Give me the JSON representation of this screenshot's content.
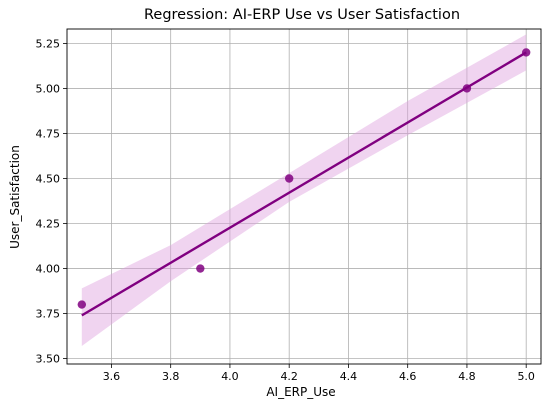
{
  "chart_data": {
    "type": "scatter",
    "title": "Regression: AI-ERP Use vs User Satisfaction",
    "xlabel": "AI_ERP_Use",
    "ylabel": "User_Satisfaction",
    "xlim": [
      3.45,
      5.05
    ],
    "ylim": [
      3.47,
      5.33
    ],
    "x_ticks": [
      3.6,
      3.8,
      4.0,
      4.2,
      4.4,
      4.6,
      4.8,
      5.0
    ],
    "x_tick_labels": [
      "3.6",
      "3.8",
      "4.0",
      "4.2",
      "4.4",
      "4.6",
      "4.8",
      "5.0"
    ],
    "y_ticks": [
      3.5,
      3.75,
      4.0,
      4.25,
      4.5,
      4.75,
      5.0,
      5.25
    ],
    "y_tick_labels": [
      "3.50",
      "3.75",
      "4.00",
      "4.25",
      "4.50",
      "4.75",
      "5.00",
      "5.25"
    ],
    "grid": true,
    "series": [
      {
        "points": {
          "x": [
            3.5,
            3.9,
            4.2,
            4.8,
            5.0
          ],
          "y": [
            3.8,
            4.0,
            4.5,
            5.0,
            5.2
          ]
        },
        "regression": {
          "x": [
            3.5,
            5.0
          ],
          "y": [
            3.74,
            5.2
          ]
        },
        "confidence_band": {
          "x": [
            3.5,
            3.8,
            4.2,
            4.6,
            5.0
          ],
          "lower": [
            3.57,
            3.93,
            4.37,
            4.74,
            5.1
          ],
          "upper": [
            3.89,
            4.13,
            4.53,
            4.93,
            5.3
          ]
        },
        "color": "#800080",
        "band_color": "#DDA0DD"
      }
    ]
  }
}
